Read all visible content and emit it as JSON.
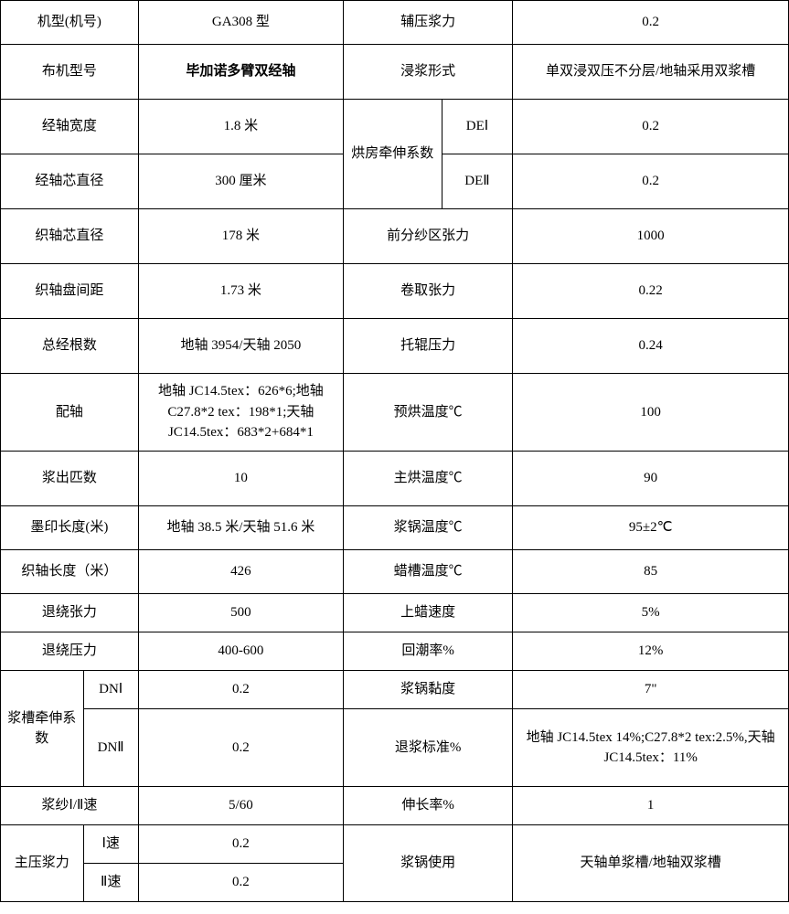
{
  "rows": {
    "r1": {
      "c1": "机型(机号)",
      "c2": "GA308 型",
      "c3": "辅压浆力",
      "c4": "0.2"
    },
    "r2": {
      "c1": "布机型号",
      "c2": "毕加诺多臂双经轴",
      "c3": "浸浆形式",
      "c4": "单双浸双压不分层/地轴采用双浆槽"
    },
    "r3": {
      "c1": "经轴宽度",
      "c2": "1.8 米",
      "c3a": "烘房牵伸系数",
      "c3b": "DEⅠ",
      "c4": "0.2"
    },
    "r4": {
      "c1": "经轴芯直径",
      "c2": "300 厘米",
      "c3b": "DEⅡ",
      "c4": "0.2"
    },
    "r5": {
      "c1": "织轴芯直径",
      "c2": "178 米",
      "c3": "前分纱区张力",
      "c4": "1000"
    },
    "r6": {
      "c1": "织轴盘间距",
      "c2": "1.73 米",
      "c3": "卷取张力",
      "c4": "0.22"
    },
    "r7": {
      "c1": "总经根数",
      "c2": "地轴 3954/天轴 2050",
      "c3": "托辊压力",
      "c4": "0.24"
    },
    "r8": {
      "c1": "配轴",
      "c2": "地轴 JC14.5tex：626*6;地轴C27.8*2 tex：198*1;天轴JC14.5tex：683*2+684*1",
      "c3": "预烘温度℃",
      "c4": "100"
    },
    "r9": {
      "c1": "浆出匹数",
      "c2": "10",
      "c3": "主烘温度℃",
      "c4": "90"
    },
    "r10": {
      "c1": "墨印长度(米)",
      "c2": "地轴 38.5 米/天轴 51.6 米",
      "c3": "浆锅温度℃",
      "c4": "95±2℃"
    },
    "r11": {
      "c1": "织轴长度（米）",
      "c2": "426",
      "c3": "蜡槽温度℃",
      "c4": "85"
    },
    "r12": {
      "c1": "退绕张力",
      "c2": "500",
      "c3": "上蜡速度",
      "c4": "5%"
    },
    "r13": {
      "c1": "退绕压力",
      "c2": "400-600",
      "c3": "回潮率%",
      "c4": "12%"
    },
    "r14": {
      "c1a": "浆槽牵伸系数",
      "c1b": "DNⅠ",
      "c2": "0.2",
      "c3": "浆锅黏度",
      "c4": "7\""
    },
    "r15": {
      "c1b": "DNⅡ",
      "c2": "0.2",
      "c3": "退浆标准%",
      "c4": "地轴 JC14.5tex 14%;C27.8*2 tex:2.5%,天轴 JC14.5tex：11%"
    },
    "r16": {
      "c1": "浆纱Ⅰ/Ⅱ速",
      "c2": "5/60",
      "c3": "伸长率%",
      "c4": "1"
    },
    "r17": {
      "c1a": "主压浆力",
      "c1b": "Ⅰ速",
      "c2": "0.2",
      "c3": "浆锅使用",
      "c4": "天轴单浆槽/地轴双浆槽"
    },
    "r18": {
      "c1b": "Ⅱ速",
      "c2": "0.2"
    }
  }
}
